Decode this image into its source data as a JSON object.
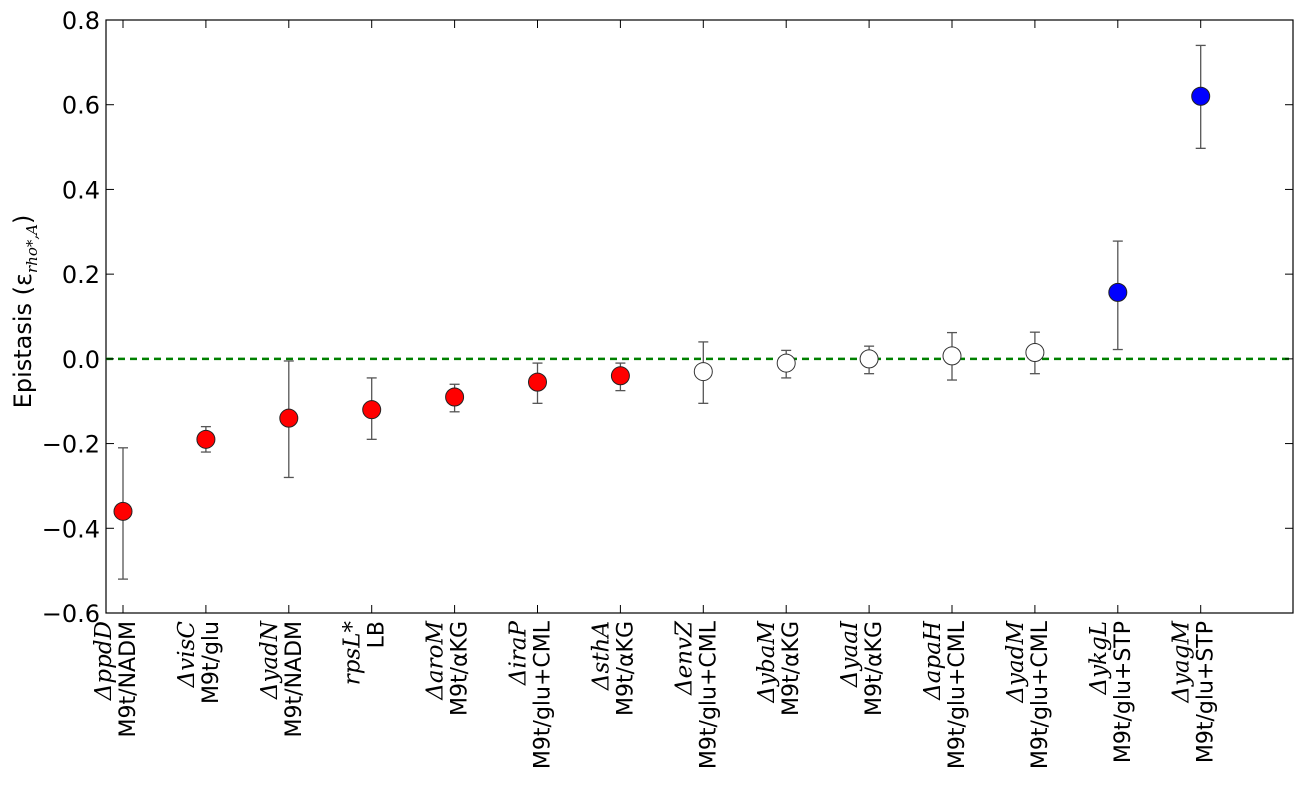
{
  "chart_data": {
    "type": "scatter",
    "title": "",
    "xlabel": "",
    "ylabel": "Epistasis (ε",
    "ylabel_subscript": "rho*,A",
    "ylabel_close": ")",
    "ylim": [
      -0.6,
      0.8
    ],
    "yticks": [
      "−0.6",
      "−0.4",
      "−0.2",
      "0.0",
      "0.2",
      "0.4",
      "0.6",
      "0.8"
    ],
    "ytick_values": [
      -0.6,
      -0.4,
      -0.2,
      0.0,
      0.2,
      0.4,
      0.6,
      0.8
    ],
    "grid": false,
    "reference_line": {
      "y": 0.0,
      "color": "#008000",
      "style": "dashed"
    },
    "fill_colors": {
      "negative": "#ff0000",
      "neutral": "#ffffff",
      "positive": "#0000ff"
    },
    "points": [
      {
        "gene": "ΔppdD",
        "condition": "M9t/NADM",
        "y": -0.36,
        "err_low": -0.52,
        "err_high": -0.21,
        "class": "negative"
      },
      {
        "gene": "ΔvisC",
        "condition": "M9t/glu",
        "y": -0.19,
        "err_low": -0.22,
        "err_high": -0.16,
        "class": "negative"
      },
      {
        "gene": "ΔyadN",
        "condition": "M9t/NADM",
        "y": -0.14,
        "err_low": -0.28,
        "err_high": -0.005,
        "class": "negative"
      },
      {
        "gene": "rpsL*",
        "condition": "LB",
        "y": -0.12,
        "err_low": -0.19,
        "err_high": -0.045,
        "class": "negative"
      },
      {
        "gene": "ΔaroM",
        "condition": "M9t/αKG",
        "y": -0.09,
        "err_low": -0.125,
        "err_high": -0.06,
        "class": "negative"
      },
      {
        "gene": "ΔiraP",
        "condition": "M9t/glu+CML",
        "y": -0.055,
        "err_low": -0.105,
        "err_high": -0.01,
        "class": "negative"
      },
      {
        "gene": "ΔsthA",
        "condition": "M9t/αKG",
        "y": -0.04,
        "err_low": -0.075,
        "err_high": -0.01,
        "class": "negative"
      },
      {
        "gene": "ΔenvZ",
        "condition": "M9t/glu+CML",
        "y": -0.03,
        "err_low": -0.105,
        "err_high": 0.04,
        "class": "neutral"
      },
      {
        "gene": "ΔybaM",
        "condition": "M9t/αKG",
        "y": -0.01,
        "err_low": -0.045,
        "err_high": 0.02,
        "class": "neutral"
      },
      {
        "gene": "ΔyaaI",
        "condition": "M9t/αKG",
        "y": 0.0,
        "err_low": -0.035,
        "err_high": 0.03,
        "class": "neutral"
      },
      {
        "gene": "ΔapaH",
        "condition": "M9t/glu+CML",
        "y": 0.007,
        "err_low": -0.05,
        "err_high": 0.062,
        "class": "neutral"
      },
      {
        "gene": "ΔyadM",
        "condition": "M9t/glu+CML",
        "y": 0.015,
        "err_low": -0.035,
        "err_high": 0.063,
        "class": "neutral"
      },
      {
        "gene": "ΔykgL",
        "condition": "M9t/glu+STP",
        "y": 0.157,
        "err_low": 0.022,
        "err_high": 0.278,
        "class": "positive"
      },
      {
        "gene": "ΔyagM",
        "condition": "M9t/glu+STP",
        "y": 0.62,
        "err_low": 0.497,
        "err_high": 0.74,
        "class": "positive"
      }
    ]
  }
}
